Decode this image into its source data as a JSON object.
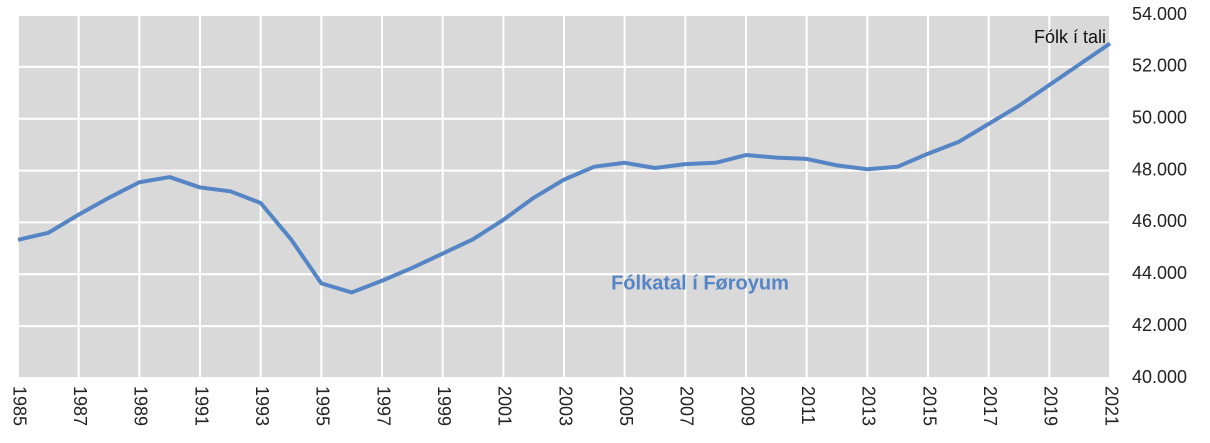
{
  "chart_data": {
    "type": "line",
    "title": "Fólkatal í Føroyum",
    "x": [
      1985,
      1986,
      1987,
      1988,
      1989,
      1990,
      1991,
      1992,
      1993,
      1994,
      1995,
      1996,
      1997,
      1998,
      1999,
      2000,
      2001,
      2002,
      2003,
      2004,
      2005,
      2006,
      2007,
      2008,
      2009,
      2010,
      2011,
      2012,
      2013,
      2014,
      2015,
      2016,
      2017,
      2018,
      2019,
      2020,
      2021
    ],
    "series": [
      {
        "name": "Fólk í tali",
        "color": "#5585c4",
        "values": [
          45330,
          45600,
          46300,
          46950,
          47550,
          47750,
          47350,
          47200,
          46750,
          45350,
          43650,
          43300,
          43750,
          44250,
          44800,
          45350,
          46100,
          46950,
          47650,
          48150,
          48300,
          48100,
          48250,
          48300,
          48600,
          48500,
          48450,
          48200,
          48050,
          48150,
          48650,
          49100,
          49800,
          50500,
          51300,
          52100,
          52900
        ]
      }
    ],
    "xlim": [
      1985,
      2021
    ],
    "xticks": [
      1985,
      1987,
      1989,
      1991,
      1993,
      1995,
      1997,
      1999,
      2001,
      2003,
      2005,
      2007,
      2009,
      2011,
      2013,
      2015,
      2017,
      2019,
      2021
    ],
    "ylim": [
      40000,
      54000
    ],
    "yticks": [
      {
        "value": 40000,
        "label": "40.000"
      },
      {
        "value": 42000,
        "label": "42.000"
      },
      {
        "value": 44000,
        "label": "44.000"
      },
      {
        "value": 46000,
        "label": "46.000"
      },
      {
        "value": 48000,
        "label": "48.000"
      },
      {
        "value": 50000,
        "label": "50.000"
      },
      {
        "value": 52000,
        "label": "52.000"
      },
      {
        "value": 54000,
        "label": "54.000"
      }
    ],
    "grid": true
  }
}
